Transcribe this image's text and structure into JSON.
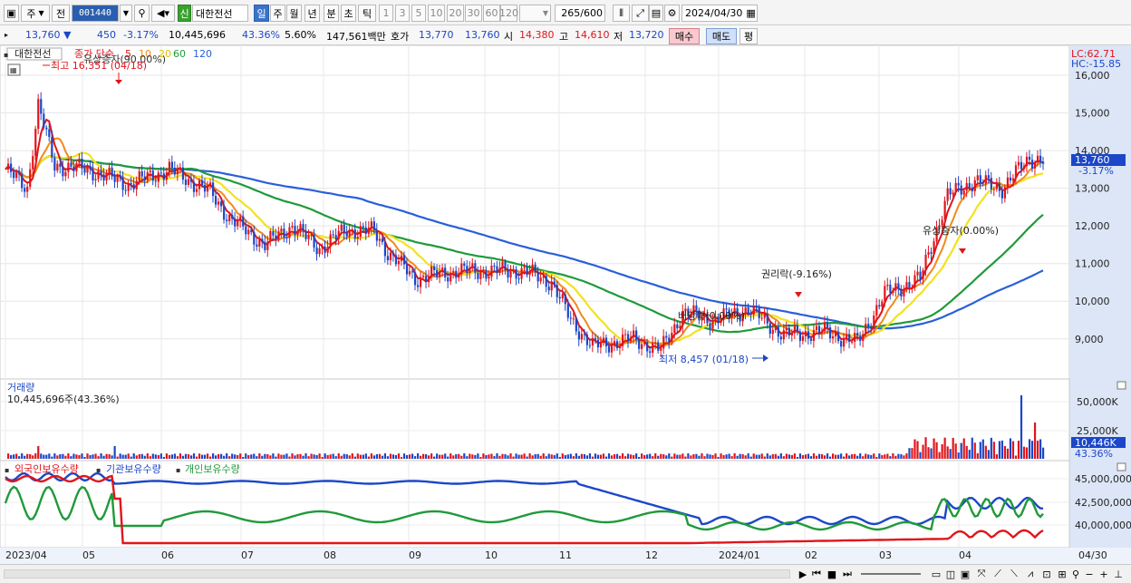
{
  "toolbar": {
    "mode": "주",
    "type": "전",
    "code": "001440",
    "badge": "신",
    "name": "대한전선",
    "periods": [
      "일",
      "주",
      "월",
      "년",
      "분",
      "초",
      "틱"
    ],
    "active_period": "일",
    "minutes": [
      "1",
      "3",
      "5",
      "10",
      "20",
      "30",
      "60",
      "120"
    ],
    "count": "265",
    "count_max": "/600",
    "date": "2024/04/30"
  },
  "info": {
    "price": "13,760",
    "change": "450",
    "rate": "-3.17%",
    "volume": "10,445,696",
    "vol_rate": "43.36%",
    "turnover": "5.60%",
    "amount": "147,561백만",
    "quote_label": "호가",
    "ask": "13,770",
    "bid": "13,760",
    "open_label": "시",
    "open": "14,380",
    "high_label": "고",
    "high": "14,610",
    "low_label": "저",
    "low": "13,720",
    "buy": "매수",
    "sell": "매도",
    "flat": "평"
  },
  "price_panel": {
    "stock": "대한전선",
    "legend_prefix": "종가 단순",
    "ma_periods": [
      "5",
      "10",
      "20",
      "60",
      "120"
    ],
    "overlay_text": "유상증자(90.00%)",
    "high_note": "최고 16,351 (04/18)",
    "low_note": "최저 8,457 (01/18)",
    "events": [
      "권리락(-9.16%)",
      "배당락(0.00%)",
      "유상증자(0.00%)"
    ],
    "lc": "LC:62.71",
    "hc": "HC:-15.85",
    "current": "13,760",
    "current_rate": "-3.17%",
    "y_ticks": [
      "16,000",
      "15,000",
      "14,000",
      "13,000",
      "12,000",
      "11,000",
      "10,000",
      "9,000"
    ]
  },
  "volume_panel": {
    "title": "거래량",
    "value": "10,445,696주(43.36%)",
    "y_ticks": [
      "50,000K",
      "25,000K"
    ],
    "current": "10,446K",
    "current_rate": "43.36%"
  },
  "holding_panel": {
    "legends": [
      "외국인보유수량",
      "기관보유수량",
      "개인보유수량"
    ],
    "y_ticks": [
      "45,000,000",
      "42,500,000",
      "40,000,000"
    ]
  },
  "x_axis": [
    "2023/04",
    "05",
    "06",
    "07",
    "08",
    "09",
    "10",
    "11",
    "12",
    "2024/01",
    "02",
    "03",
    "04"
  ],
  "x_end": "04/30",
  "colors": {
    "up": "#e0151b",
    "down": "#1b47c8",
    "ma5": "#e0151b",
    "ma10": "#f08a1c",
    "ma20": "#f2e21e",
    "ma60": "#1f9a3a",
    "ma120": "#2a5fd9"
  }
}
